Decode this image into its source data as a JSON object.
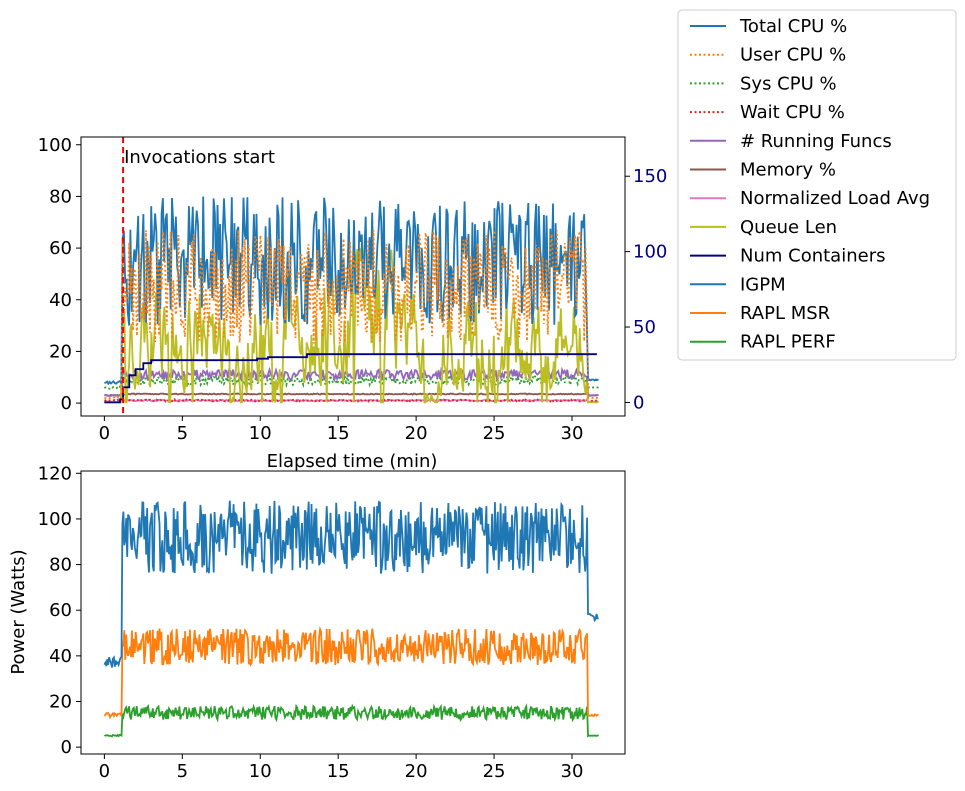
{
  "chart_data": [
    {
      "type": "line",
      "xlabel": "Elapsed time (min)",
      "ylabel": "",
      "xlim": [
        -1.5,
        33.4
      ],
      "ylim": [
        -5,
        103
      ],
      "ylim_right": [
        -9,
        176
      ],
      "x_ticks": [
        "0",
        "5",
        "10",
        "15",
        "20",
        "25",
        "30"
      ],
      "y_ticks": [
        "0",
        "20",
        "40",
        "60",
        "80",
        "100"
      ],
      "y_ticks_right": [
        "0",
        "50",
        "100",
        "150"
      ],
      "annotation": "Invocations start",
      "annotation_x": 1.2,
      "right_axis_color": "#000080",
      "series": [
        {
          "name": "Total CPU %",
          "color": "#1f77b4",
          "style": "solid",
          "axis": "left",
          "baseline": 8,
          "active_mean": 55,
          "active_amp": 25,
          "tail": 9
        },
        {
          "name": "User CPU %",
          "color": "#ff7f0e",
          "style": "dotted",
          "axis": "left",
          "baseline": 2,
          "active_mean": 45,
          "active_amp": 22,
          "tail": 2
        },
        {
          "name": "Sys CPU %",
          "color": "#2ca02c",
          "style": "dotted",
          "axis": "left",
          "baseline": 6,
          "active_mean": 9,
          "active_amp": 2,
          "tail": 6
        },
        {
          "name": "Wait CPU %",
          "color": "#d62728",
          "style": "dotted",
          "axis": "left",
          "baseline": 1,
          "active_mean": 1,
          "active_amp": 0.4,
          "tail": 1
        },
        {
          "name": "# Running Funcs",
          "color": "#9467bd",
          "style": "solid",
          "axis": "left",
          "baseline": 3,
          "active_mean": 11,
          "active_amp": 2,
          "tail": 3
        },
        {
          "name": "Memory %",
          "color": "#8c564b",
          "style": "solid",
          "axis": "left",
          "baseline": 3,
          "active_mean": 3.5,
          "active_amp": 0.2,
          "tail": 3
        },
        {
          "name": "Normalized Load Avg",
          "color": "#e377c2",
          "style": "solid",
          "axis": "left",
          "baseline": 0.5,
          "active_mean": 1,
          "active_amp": 0.3,
          "tail": 0.5
        },
        {
          "name": "Queue Len",
          "color": "#bcbd22",
          "style": "solid",
          "axis": "right",
          "baseline": 0,
          "active_mean": 40,
          "active_amp": 60,
          "tail": 0
        },
        {
          "name": "Num Containers",
          "color": "#000080",
          "style": "solid",
          "axis": "right",
          "steps": [
            [
              0,
              0
            ],
            [
              1,
              2
            ],
            [
              1.2,
              10
            ],
            [
              1.6,
              18
            ],
            [
              2,
              22
            ],
            [
              2.5,
              26
            ],
            [
              3,
              28
            ],
            [
              9.8,
              29
            ],
            [
              10.5,
              30
            ],
            [
              13,
              32
            ],
            [
              31.6,
              32
            ]
          ]
        }
      ]
    },
    {
      "type": "line",
      "xlabel": "",
      "ylabel": "Power (Watts)",
      "xlim": [
        -1.5,
        33.4
      ],
      "ylim": [
        -3,
        121
      ],
      "x_ticks": [
        "0",
        "5",
        "10",
        "15",
        "20",
        "25",
        "30"
      ],
      "y_ticks": [
        "0",
        "20",
        "40",
        "60",
        "80",
        "100",
        "120"
      ],
      "series": [
        {
          "name": "IGPM",
          "color": "#1f77b4",
          "style": "solid",
          "baseline": 37,
          "active_mean": 92,
          "active_amp": 16,
          "tail": 57
        },
        {
          "name": "RAPL MSR",
          "color": "#ff7f0e",
          "style": "solid",
          "baseline": 14,
          "active_mean": 44,
          "active_amp": 8,
          "tail": 14
        },
        {
          "name": "RAPL PERF",
          "color": "#2ca02c",
          "style": "solid",
          "baseline": 5,
          "active_mean": 15,
          "active_amp": 3,
          "tail": 5
        }
      ]
    }
  ],
  "legend": {
    "placement": "right",
    "entries": [
      {
        "label": "Total CPU %",
        "color": "#1f77b4",
        "style": "solid"
      },
      {
        "label": "User CPU %",
        "color": "#ff7f0e",
        "style": "dotted"
      },
      {
        "label": "Sys CPU %",
        "color": "#2ca02c",
        "style": "dotted"
      },
      {
        "label": "Wait CPU %",
        "color": "#d62728",
        "style": "dotted"
      },
      {
        "label": "# Running Funcs",
        "color": "#9467bd",
        "style": "solid"
      },
      {
        "label": "Memory %",
        "color": "#8c564b",
        "style": "solid"
      },
      {
        "label": "Normalized Load Avg",
        "color": "#e377c2",
        "style": "solid"
      },
      {
        "label": "Queue Len",
        "color": "#bcbd22",
        "style": "solid"
      },
      {
        "label": "Num Containers",
        "color": "#000080",
        "style": "solid"
      },
      {
        "label": "IGPM",
        "color": "#1f77b4",
        "style": "solid"
      },
      {
        "label": "RAPL MSR",
        "color": "#ff7f0e",
        "style": "solid"
      },
      {
        "label": "RAPL PERF",
        "color": "#2ca02c",
        "style": "solid"
      }
    ]
  }
}
